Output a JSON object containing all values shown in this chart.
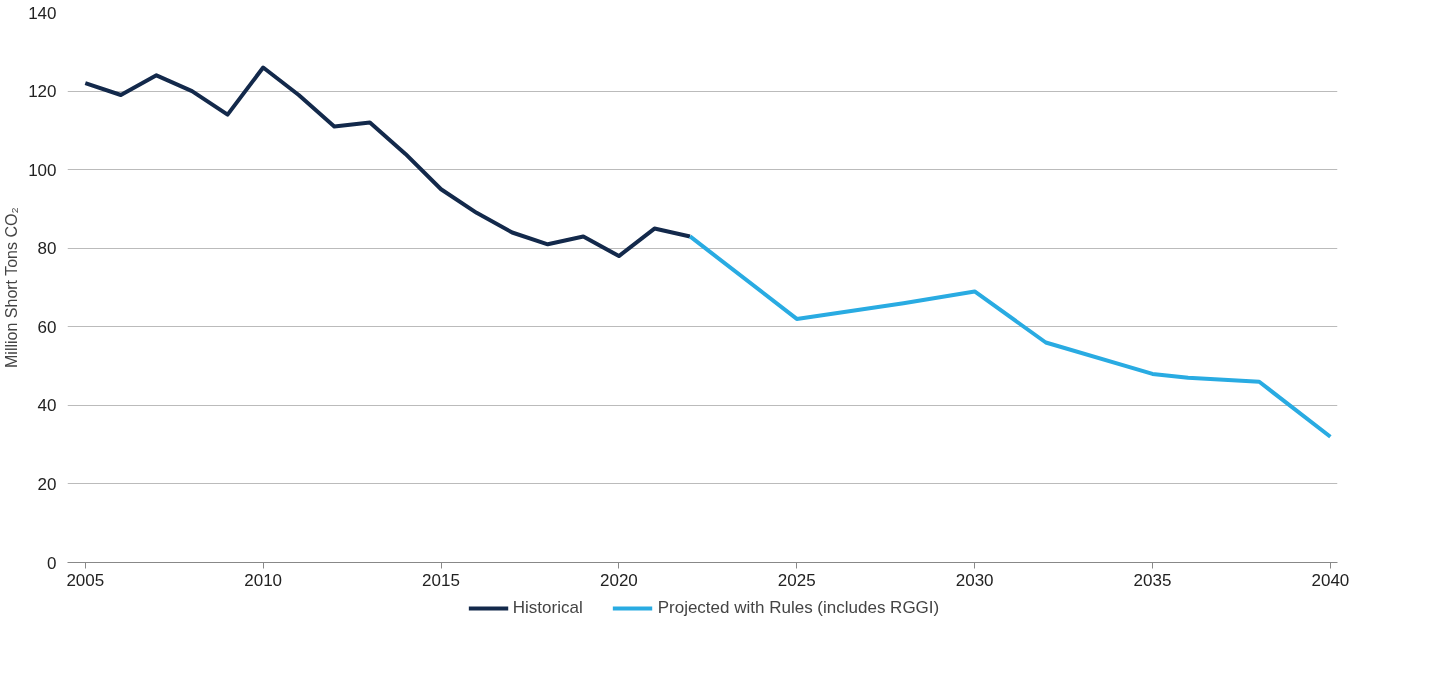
{
  "chart_data": {
    "type": "line",
    "ylabel": "Million Short Tons CO₂",
    "xlim": [
      2004.5,
      2040.2
    ],
    "ylim": [
      0,
      140
    ],
    "xticks": [
      2005,
      2010,
      2015,
      2020,
      2025,
      2030,
      2035,
      2040
    ],
    "yticks": [
      0,
      20,
      40,
      60,
      80,
      100,
      120,
      140
    ],
    "grid": "y",
    "legend": "bottom",
    "marker": "none",
    "line_style": "solid",
    "series": [
      {
        "name": "Historical",
        "color": "#13294b",
        "x": [
          2005,
          2006,
          2007,
          2008,
          2009,
          2010,
          2011,
          2012,
          2013,
          2014,
          2015,
          2016,
          2017,
          2018,
          2019,
          2020,
          2021,
          2022
        ],
        "values": [
          122,
          119,
          124,
          120,
          114,
          126,
          119,
          111,
          112,
          104,
          95,
          89,
          84,
          81,
          83,
          78,
          85,
          83
        ]
      },
      {
        "name": "Projected with Rules (includes RGGI)",
        "color": "#29abe2",
        "x": [
          2022,
          2025,
          2028,
          2030,
          2032,
          2035,
          2036,
          2038,
          2040
        ],
        "values": [
          83,
          62,
          66,
          69,
          56,
          48,
          47,
          46,
          32
        ]
      }
    ]
  }
}
